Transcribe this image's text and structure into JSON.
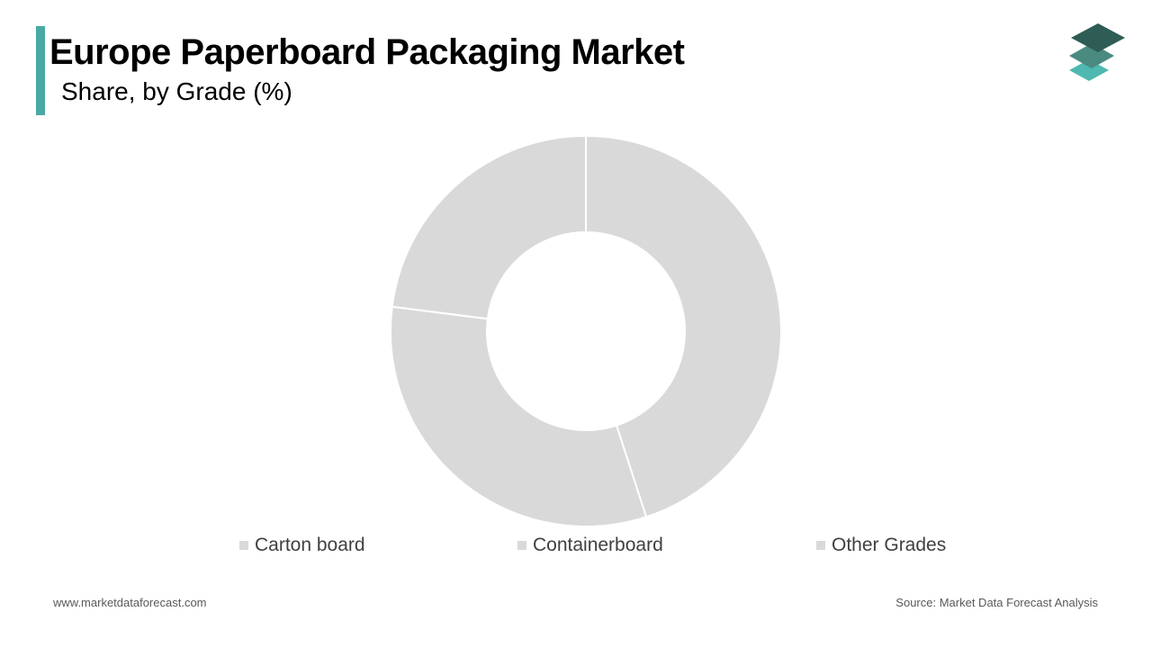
{
  "header": {
    "title": "Europe Paperboard Packaging Market",
    "subtitle": "Share, by Grade (%)"
  },
  "logo": {
    "icon": "stacked-layers-logo-icon"
  },
  "colors": {
    "accent": "#4aa9a4",
    "slice": "#d9d9d9",
    "slice_border": "#ffffff",
    "legend_swatch": "#d9d9d9",
    "logo_dark": "#2e5d55",
    "logo_mid": "#4a8a80",
    "logo_light": "#4fb8b0"
  },
  "chart_data": {
    "type": "pie",
    "variant": "donut",
    "categories": [
      "Carton board",
      "Containerboard",
      "Other Grades"
    ],
    "values": [
      45,
      32,
      23
    ],
    "unit": "%",
    "legend_position": "bottom"
  },
  "footer": {
    "website": "www.marketdataforecast.com",
    "source": "Source: Market Data Forecast Analysis"
  }
}
